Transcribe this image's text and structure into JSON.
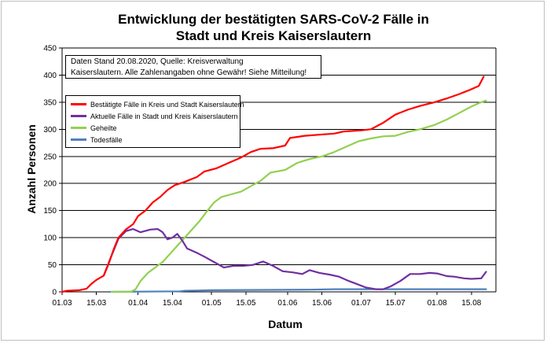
{
  "chart_data": {
    "type": "line",
    "title_lines": [
      "Entwicklung der bestätigten SARS-CoV-2 Fälle in",
      "Stadt und Kreis Kaiserslautern"
    ],
    "xlabel": "Datum",
    "ylabel": "Anzahl Personen",
    "ylim": [
      0,
      450
    ],
    "yticks": [
      0,
      50,
      100,
      150,
      200,
      250,
      300,
      350,
      400,
      450
    ],
    "xlim": [
      "2020-03-01",
      "2020-08-25"
    ],
    "xticks": [
      "01.03",
      "15.03",
      "01.04",
      "15.04",
      "01.05",
      "15.05",
      "01.06",
      "15.06",
      "01.07",
      "15.07",
      "01.08",
      "15.08"
    ],
    "grid": true,
    "legend_position": "top-left",
    "annotation": [
      "Daten Stand 20.08.2020, Quelle: Kreisverwaltung",
      "Kaiserslautern. Alle Zahlenangaben ohne Gewähr! Siehe Mitteilung!"
    ],
    "series": [
      {
        "name": "Bestätigte Fälle in Kreis und Stadt Kaiserslautern",
        "color": "#ff0000",
        "points": [
          [
            "2020-03-01",
            0
          ],
          [
            "2020-03-03",
            2
          ],
          [
            "2020-03-08",
            3
          ],
          [
            "2020-03-11",
            6
          ],
          [
            "2020-03-13",
            15
          ],
          [
            "2020-03-15",
            22
          ],
          [
            "2020-03-18",
            30
          ],
          [
            "2020-03-20",
            52
          ],
          [
            "2020-03-22",
            78
          ],
          [
            "2020-03-24",
            100
          ],
          [
            "2020-03-27",
            115
          ],
          [
            "2020-03-30",
            125
          ],
          [
            "2020-04-01",
            140
          ],
          [
            "2020-04-04",
            150
          ],
          [
            "2020-04-07",
            165
          ],
          [
            "2020-04-10",
            175
          ],
          [
            "2020-04-13",
            188
          ],
          [
            "2020-04-16",
            197
          ],
          [
            "2020-04-20",
            203
          ],
          [
            "2020-04-25",
            212
          ],
          [
            "2020-04-28",
            222
          ],
          [
            "2020-05-03",
            228
          ],
          [
            "2020-05-08",
            238
          ],
          [
            "2020-05-13",
            248
          ],
          [
            "2020-05-17",
            258
          ],
          [
            "2020-05-21",
            264
          ],
          [
            "2020-05-26",
            265
          ],
          [
            "2020-05-31",
            270
          ],
          [
            "2020-06-02",
            284
          ],
          [
            "2020-06-08",
            288
          ],
          [
            "2020-06-14",
            290
          ],
          [
            "2020-06-20",
            292
          ],
          [
            "2020-06-24",
            296
          ],
          [
            "2020-07-01",
            298
          ],
          [
            "2020-07-05",
            300
          ],
          [
            "2020-07-10",
            312
          ],
          [
            "2020-07-15",
            327
          ],
          [
            "2020-07-20",
            336
          ],
          [
            "2020-07-25",
            343
          ],
          [
            "2020-07-31",
            350
          ],
          [
            "2020-08-05",
            357
          ],
          [
            "2020-08-10",
            365
          ],
          [
            "2020-08-14",
            372
          ],
          [
            "2020-08-18",
            380
          ],
          [
            "2020-08-20",
            397
          ]
        ]
      },
      {
        "name": "Aktuelle Fälle in Stadt und Kreis Kaiserslautern",
        "color": "#7030a0",
        "points": [
          [
            "2020-03-18",
            30
          ],
          [
            "2020-03-21",
            65
          ],
          [
            "2020-03-24",
            98
          ],
          [
            "2020-03-27",
            112
          ],
          [
            "2020-03-30",
            116
          ],
          [
            "2020-04-02",
            110
          ],
          [
            "2020-04-06",
            115
          ],
          [
            "2020-04-09",
            116
          ],
          [
            "2020-04-11",
            110
          ],
          [
            "2020-04-13",
            97
          ],
          [
            "2020-04-15",
            100
          ],
          [
            "2020-04-17",
            107
          ],
          [
            "2020-04-19",
            95
          ],
          [
            "2020-04-21",
            80
          ],
          [
            "2020-04-25",
            72
          ],
          [
            "2020-04-28",
            65
          ],
          [
            "2020-05-02",
            55
          ],
          [
            "2020-05-06",
            45
          ],
          [
            "2020-05-10",
            48
          ],
          [
            "2020-05-14",
            48
          ],
          [
            "2020-05-18",
            50
          ],
          [
            "2020-05-22",
            56
          ],
          [
            "2020-05-26",
            48
          ],
          [
            "2020-05-30",
            38
          ],
          [
            "2020-06-03",
            36
          ],
          [
            "2020-06-07",
            33
          ],
          [
            "2020-06-10",
            40
          ],
          [
            "2020-06-14",
            35
          ],
          [
            "2020-06-18",
            32
          ],
          [
            "2020-06-22",
            28
          ],
          [
            "2020-06-26",
            20
          ],
          [
            "2020-06-29",
            15
          ],
          [
            "2020-07-03",
            8
          ],
          [
            "2020-07-07",
            5
          ],
          [
            "2020-07-10",
            5
          ],
          [
            "2020-07-13",
            10
          ],
          [
            "2020-07-17",
            20
          ],
          [
            "2020-07-21",
            33
          ],
          [
            "2020-07-25",
            33
          ],
          [
            "2020-07-29",
            35
          ],
          [
            "2020-08-01",
            34
          ],
          [
            "2020-08-05",
            29
          ],
          [
            "2020-08-08",
            28
          ],
          [
            "2020-08-12",
            25
          ],
          [
            "2020-08-15",
            24
          ],
          [
            "2020-08-19",
            25
          ],
          [
            "2020-08-21",
            37
          ]
        ]
      },
      {
        "name": "Geheilte",
        "color": "#92d050",
        "points": [
          [
            "2020-03-21",
            0
          ],
          [
            "2020-03-29",
            0
          ],
          [
            "2020-03-31",
            5
          ],
          [
            "2020-04-02",
            20
          ],
          [
            "2020-04-05",
            35
          ],
          [
            "2020-04-08",
            45
          ],
          [
            "2020-04-11",
            55
          ],
          [
            "2020-04-14",
            70
          ],
          [
            "2020-04-17",
            85
          ],
          [
            "2020-04-20",
            100
          ],
          [
            "2020-04-23",
            115
          ],
          [
            "2020-04-26",
            130
          ],
          [
            "2020-04-29",
            148
          ],
          [
            "2020-05-02",
            165
          ],
          [
            "2020-05-05",
            175
          ],
          [
            "2020-05-09",
            180
          ],
          [
            "2020-05-13",
            185
          ],
          [
            "2020-05-17",
            195
          ],
          [
            "2020-05-21",
            205
          ],
          [
            "2020-05-25",
            220
          ],
          [
            "2020-05-31",
            225
          ],
          [
            "2020-06-05",
            238
          ],
          [
            "2020-06-10",
            245
          ],
          [
            "2020-06-15",
            250
          ],
          [
            "2020-06-20",
            258
          ],
          [
            "2020-06-25",
            268
          ],
          [
            "2020-06-30",
            278
          ],
          [
            "2020-07-05",
            283
          ],
          [
            "2020-07-10",
            287
          ],
          [
            "2020-07-15",
            288
          ],
          [
            "2020-07-20",
            295
          ],
          [
            "2020-07-25",
            300
          ],
          [
            "2020-07-31",
            308
          ],
          [
            "2020-08-05",
            318
          ],
          [
            "2020-08-10",
            330
          ],
          [
            "2020-08-15",
            342
          ],
          [
            "2020-08-19",
            350
          ],
          [
            "2020-08-21",
            353
          ]
        ]
      },
      {
        "name": "Todesfälle",
        "color": "#4f81bd",
        "points": [
          [
            "2020-03-20",
            0
          ],
          [
            "2020-04-18",
            1
          ],
          [
            "2020-04-20",
            2
          ],
          [
            "2020-05-01",
            3
          ],
          [
            "2020-06-10",
            4
          ],
          [
            "2020-06-20",
            5
          ],
          [
            "2020-08-21",
            5
          ]
        ]
      }
    ]
  }
}
